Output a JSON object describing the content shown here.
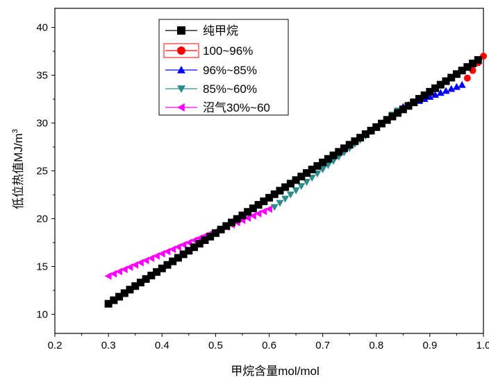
{
  "chart_data": {
    "type": "scatter",
    "xlabel": "甲烷含量mol/mol",
    "ylabel": "低位热值MJ/m",
    "ylabel_sup": "3",
    "xlim": [
      0.2,
      1.0
    ],
    "ylim": [
      8,
      42
    ],
    "x_ticks": [
      "0.2",
      "0.3",
      "0.4",
      "0.5",
      "0.6",
      "0.7",
      "0.8",
      "0.9",
      "1.0"
    ],
    "y_ticks": [
      "10",
      "15",
      "20",
      "25",
      "30",
      "35",
      "40"
    ],
    "legend_position": "top-left",
    "series": [
      {
        "name": "纯甲烷",
        "marker": "square",
        "color": "#000000",
        "line": true,
        "x_start": 0.3,
        "x_end": 0.99,
        "x_step": 0.01,
        "y_start": 11.1,
        "y_end": 36.6
      },
      {
        "name": "100~96%",
        "marker": "circle",
        "color": "#ff0000",
        "line": false,
        "points": [
          [
            0.97,
            34.7
          ],
          [
            0.98,
            35.5
          ],
          [
            0.99,
            36.3
          ],
          [
            1.0,
            37.0
          ]
        ]
      },
      {
        "name": "96%~85%",
        "marker": "triangle-up",
        "color": "#0000ff",
        "line": false,
        "x_start": 0.85,
        "x_end": 0.96,
        "x_step": 0.01,
        "y_start": 31.7,
        "y_end": 34.0
      },
      {
        "name": "85%~60%",
        "marker": "triangle-down",
        "color": "#2b8a8a",
        "line": false,
        "x_start": 0.61,
        "x_end": 0.84,
        "x_step": 0.01,
        "y_start": 21.2,
        "y_end": 31.3
      },
      {
        "name": "沼气30%~60",
        "marker": "triangle-left",
        "color": "#ff00ff",
        "line": false,
        "x_start": 0.3,
        "x_end": 0.6,
        "x_step": 0.01,
        "y_start": 14.0,
        "y_end": 21.0
      }
    ]
  }
}
